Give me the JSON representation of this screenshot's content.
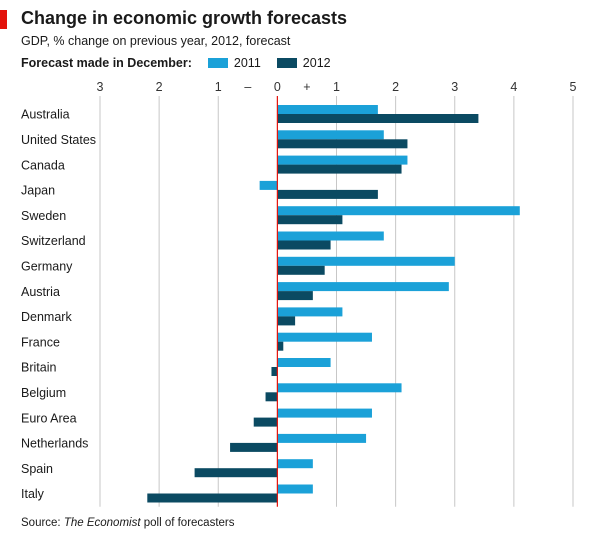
{
  "title": "Change in economic growth forecasts",
  "subtitle": "GDP, % change on previous year, 2012, forecast",
  "legend": {
    "title": "Forecast made in December:",
    "items": [
      {
        "label": "2011",
        "color": "#1ba1d8"
      },
      {
        "label": "2012",
        "color": "#0b4a62"
      }
    ]
  },
  "source": {
    "prefix": "Source: ",
    "publication": "The Economist",
    "suffix": " poll of forecasters"
  },
  "chart_data": {
    "type": "bar",
    "orientation": "horizontal",
    "xlim": [
      -3,
      5
    ],
    "ticks": [
      {
        "value": -3,
        "label": "3"
      },
      {
        "value": -2,
        "label": "2"
      },
      {
        "value": -1,
        "label": "1"
      },
      {
        "value": -0.5,
        "label": "–",
        "gridline": false
      },
      {
        "value": 0,
        "label": "0"
      },
      {
        "value": 0.5,
        "label": "+",
        "gridline": false
      },
      {
        "value": 1,
        "label": "1"
      },
      {
        "value": 2,
        "label": "2"
      },
      {
        "value": 3,
        "label": "3"
      },
      {
        "value": 4,
        "label": "4"
      },
      {
        "value": 5,
        "label": "5"
      }
    ],
    "grid": true,
    "zero_line_color": "#e3120b",
    "categories": [
      "Australia",
      "United States",
      "Canada",
      "Japan",
      "Sweden",
      "Switzerland",
      "Germany",
      "Austria",
      "Denmark",
      "France",
      "Britain",
      "Belgium",
      "Euro Area",
      "Netherlands",
      "Spain",
      "Italy"
    ],
    "series": [
      {
        "name": "2011",
        "color": "#1ba1d8",
        "values": [
          1.7,
          1.8,
          2.2,
          -0.3,
          4.1,
          1.8,
          3.0,
          2.9,
          1.1,
          1.6,
          0.9,
          2.1,
          1.6,
          1.5,
          0.6,
          0.6
        ]
      },
      {
        "name": "2012",
        "color": "#0b4a62",
        "values": [
          3.4,
          2.2,
          2.1,
          1.7,
          1.1,
          0.9,
          0.8,
          0.6,
          0.3,
          0.1,
          -0.1,
          -0.2,
          -0.4,
          -0.8,
          -1.4,
          -2.2
        ]
      }
    ]
  }
}
